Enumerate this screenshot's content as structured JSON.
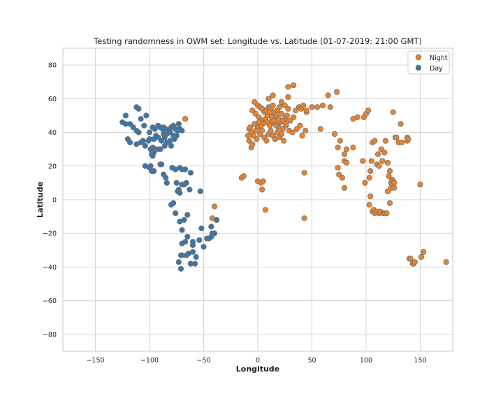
{
  "colors": {
    "night": "#e8832f",
    "day": "#3a76a8",
    "marker_edge": "#707070",
    "grid": "#d6d6d6",
    "axes_edge": "#c8c8c8",
    "text": "#222222"
  },
  "chart_data": {
    "type": "scatter",
    "title": "Testing randomness in OWM set: Longitude vs. Latitude (01-07-2019: 21:00 GMT)",
    "xlabel": "Longitude",
    "ylabel": "Latitude",
    "xlim": [
      -180,
      180
    ],
    "ylim": [
      -90,
      90
    ],
    "xticks": [
      -150,
      -100,
      -50,
      0,
      50,
      100,
      150
    ],
    "yticks": [
      -80,
      -60,
      -40,
      -20,
      0,
      20,
      40,
      60,
      80
    ],
    "grid": true,
    "legend_position": "top-right",
    "series": [
      {
        "name": "Night",
        "color_key": "night",
        "points": [
          [
            -3,
            58
          ],
          [
            0,
            56
          ],
          [
            2,
            55
          ],
          [
            4,
            54
          ],
          [
            6,
            52
          ],
          [
            8,
            53
          ],
          [
            10,
            55
          ],
          [
            12,
            54
          ],
          [
            14,
            56
          ],
          [
            15,
            52
          ],
          [
            17,
            50
          ],
          [
            18,
            53
          ],
          [
            20,
            55
          ],
          [
            22,
            51
          ],
          [
            25,
            48
          ],
          [
            27,
            50
          ],
          [
            28,
            54
          ],
          [
            30,
            47
          ],
          [
            33,
            49
          ],
          [
            35,
            53
          ],
          [
            38,
            55
          ],
          [
            40,
            54
          ],
          [
            42,
            56
          ],
          [
            45,
            52
          ],
          [
            -5,
            53
          ],
          [
            -2,
            51
          ],
          [
            1,
            49
          ],
          [
            3,
            47
          ],
          [
            5,
            45
          ],
          [
            7,
            48
          ],
          [
            9,
            46
          ],
          [
            11,
            44
          ],
          [
            13,
            47
          ],
          [
            16,
            45
          ],
          [
            19,
            43
          ],
          [
            21,
            46
          ],
          [
            23,
            42
          ],
          [
            26,
            44
          ],
          [
            29,
            41
          ],
          [
            32,
            40
          ],
          [
            36,
            42
          ],
          [
            39,
            44
          ],
          [
            41,
            38
          ],
          [
            44,
            41
          ],
          [
            -8,
            42
          ],
          [
            -6,
            40
          ],
          [
            -4,
            38
          ],
          [
            -1,
            36
          ],
          [
            2,
            39
          ],
          [
            4,
            41
          ],
          [
            6,
            37
          ],
          [
            8,
            35
          ],
          [
            10,
            39
          ],
          [
            12,
            41
          ],
          [
            14,
            38
          ],
          [
            16,
            36
          ],
          [
            18,
            40
          ],
          [
            20,
            37
          ],
          [
            22,
            39
          ],
          [
            24,
            35
          ],
          [
            -7,
            43
          ],
          [
            -3,
            45
          ],
          [
            0,
            43
          ],
          [
            3,
            44
          ],
          [
            -9,
            38
          ],
          [
            -8,
            35
          ],
          [
            -6,
            31
          ],
          [
            -5,
            33
          ],
          [
            -2,
            41
          ],
          [
            1,
            46
          ],
          [
            9,
            50
          ],
          [
            11,
            52
          ],
          [
            13,
            49
          ],
          [
            15,
            47
          ],
          [
            17,
            44
          ],
          [
            19,
            48
          ],
          [
            23,
            47
          ],
          [
            26,
            45
          ],
          [
            28,
            61
          ],
          [
            28,
            67
          ],
          [
            33,
            68
          ],
          [
            22,
            58
          ],
          [
            14,
            62
          ],
          [
            10,
            60
          ],
          [
            25,
            56
          ],
          [
            45,
            53
          ],
          [
            50,
            55
          ],
          [
            55,
            55
          ],
          [
            58,
            42
          ],
          [
            60,
            56
          ],
          [
            65,
            62
          ],
          [
            67,
            55
          ],
          [
            71,
            39
          ],
          [
            73,
            64
          ],
          [
            76,
            35
          ],
          [
            74,
            31
          ],
          [
            74,
            19
          ],
          [
            75,
            15
          ],
          [
            78,
            13
          ],
          [
            80,
            27
          ],
          [
            80,
            23
          ],
          [
            80,
            7
          ],
          [
            82,
            22
          ],
          [
            82,
            30
          ],
          [
            88,
            31
          ],
          [
            88,
            48
          ],
          [
            92,
            49
          ],
          [
            97,
            23
          ],
          [
            98,
            49
          ],
          [
            99,
            10
          ],
          [
            100,
            51
          ],
          [
            102,
            53
          ],
          [
            103,
            -3
          ],
          [
            103,
            13
          ],
          [
            104,
            17
          ],
          [
            104,
            2
          ],
          [
            105,
            23
          ],
          [
            106,
            34
          ],
          [
            106,
            -7
          ],
          [
            107,
            -6
          ],
          [
            108,
            35
          ],
          [
            108,
            -8
          ],
          [
            110,
            21
          ],
          [
            110,
            -7
          ],
          [
            111,
            27
          ],
          [
            112,
            20
          ],
          [
            112,
            -8
          ],
          [
            113,
            -7
          ],
          [
            114,
            30
          ],
          [
            115,
            23
          ],
          [
            116,
            -8
          ],
          [
            117,
            28
          ],
          [
            117,
            -8
          ],
          [
            118,
            35
          ],
          [
            119,
            -8
          ],
          [
            120,
            5
          ],
          [
            120,
            22
          ],
          [
            121,
            14
          ],
          [
            122,
            17
          ],
          [
            122,
            -2
          ],
          [
            123,
            7
          ],
          [
            123,
            10
          ],
          [
            124,
            12
          ],
          [
            125,
            11
          ],
          [
            125,
            52
          ],
          [
            126,
            10
          ],
          [
            126,
            7
          ],
          [
            127,
            37
          ],
          [
            128,
            37
          ],
          [
            130,
            34
          ],
          [
            132,
            45
          ],
          [
            133,
            34
          ],
          [
            138,
            35
          ],
          [
            138,
            37
          ],
          [
            139,
            36
          ],
          [
            140,
            -35
          ],
          [
            141,
            -35
          ],
          [
            143,
            -38
          ],
          [
            144,
            -38
          ],
          [
            145,
            -37
          ],
          [
            150,
            9
          ],
          [
            151,
            -34
          ],
          [
            153,
            -31
          ],
          [
            174,
            -37
          ],
          [
            -15,
            13
          ],
          [
            -13,
            14
          ],
          [
            0,
            11
          ],
          [
            3,
            10
          ],
          [
            5,
            11
          ],
          [
            7,
            -6
          ],
          [
            4,
            6
          ],
          [
            43,
            -11
          ],
          [
            43,
            16
          ],
          [
            -40,
            -4
          ],
          [
            -38,
            -12
          ],
          [
            -42,
            -11
          ],
          [
            -67,
            48
          ]
        ]
      },
      {
        "name": "Day",
        "color_key": "day",
        "points": [
          [
            -122,
            50
          ],
          [
            -125,
            46
          ],
          [
            -122,
            45
          ],
          [
            -118,
            45
          ],
          [
            -115,
            43
          ],
          [
            -112,
            41
          ],
          [
            -110,
            40
          ],
          [
            -108,
            48
          ],
          [
            -105,
            44
          ],
          [
            -100,
            40
          ],
          [
            -97,
            43
          ],
          [
            -95,
            42
          ],
          [
            -92,
            44
          ],
          [
            -90,
            43
          ],
          [
            -88,
            42
          ],
          [
            -87,
            43
          ],
          [
            -85,
            42
          ],
          [
            -83,
            41
          ],
          [
            -81,
            40
          ],
          [
            -80,
            43
          ],
          [
            -78,
            44
          ],
          [
            -76,
            42
          ],
          [
            -74,
            41
          ],
          [
            -72,
            42
          ],
          [
            -70,
            41
          ],
          [
            -73,
            45
          ],
          [
            -120,
            36
          ],
          [
            -118,
            34
          ],
          [
            -112,
            33
          ],
          [
            -106,
            35
          ],
          [
            -104,
            32
          ],
          [
            -97,
            31
          ],
          [
            -95,
            30
          ],
          [
            -90,
            30
          ],
          [
            -86,
            32
          ],
          [
            -84,
            34
          ],
          [
            -81,
            35
          ],
          [
            -80,
            32
          ],
          [
            -78,
            38
          ],
          [
            -77,
            36
          ],
          [
            -75,
            38
          ],
          [
            -112,
            55
          ],
          [
            -110,
            54
          ],
          [
            -103,
            50
          ],
          [
            -108,
            34
          ],
          [
            -104,
            20
          ],
          [
            -100,
            19
          ],
          [
            -99,
            20
          ],
          [
            -98,
            17
          ],
          [
            -96,
            17
          ],
          [
            -90,
            21
          ],
          [
            -89,
            21
          ],
          [
            -87,
            15
          ],
          [
            -85,
            13
          ],
          [
            -84,
            10
          ],
          [
            -79,
            19
          ],
          [
            -76,
            18
          ],
          [
            -72,
            19
          ],
          [
            -70,
            18
          ],
          [
            -67,
            18
          ],
          [
            -62,
            16
          ],
          [
            -75,
            10
          ],
          [
            -74,
            5
          ],
          [
            -73,
            6
          ],
          [
            -72,
            4
          ],
          [
            -70,
            9
          ],
          [
            -68,
            9
          ],
          [
            -66,
            10
          ],
          [
            -63,
            6
          ],
          [
            -53,
            5
          ],
          [
            -80,
            -3
          ],
          [
            -78,
            -2
          ],
          [
            -76,
            -8
          ],
          [
            -72,
            -13
          ],
          [
            -70,
            -18
          ],
          [
            -68,
            -12
          ],
          [
            -65,
            -9
          ],
          [
            -70,
            -26
          ],
          [
            -67,
            -25
          ],
          [
            -65,
            -22
          ],
          [
            -60,
            -25
          ],
          [
            -57,
            -34
          ],
          [
            -54,
            -24
          ],
          [
            -52,
            -17
          ],
          [
            -50,
            -28
          ],
          [
            -47,
            -23
          ],
          [
            -45,
            -23
          ],
          [
            -43,
            -22
          ],
          [
            -42,
            -20
          ],
          [
            -40,
            -20
          ],
          [
            -43,
            -16
          ],
          [
            -38,
            -12
          ],
          [
            -71,
            -33
          ],
          [
            -70,
            -33
          ],
          [
            -66,
            -33
          ],
          [
            -64,
            -32
          ],
          [
            -60,
            -31
          ],
          [
            -62,
            -38
          ],
          [
            -58,
            -38
          ],
          [
            -73,
            -37
          ],
          [
            -71,
            -41
          ],
          [
            -60,
            -27
          ],
          [
            -99,
            30
          ],
          [
            -98,
            27
          ],
          [
            -97,
            26
          ],
          [
            -96,
            28
          ],
          [
            -95,
            30
          ],
          [
            -93,
            30
          ],
          [
            -91,
            30
          ],
          [
            -100,
            36
          ],
          [
            -101,
            35
          ],
          [
            -96,
            36
          ],
          [
            -94,
            38
          ],
          [
            -92,
            37
          ],
          [
            -89,
            35
          ],
          [
            -87,
            39
          ],
          [
            -86,
            37
          ],
          [
            -84,
            39
          ]
        ]
      }
    ]
  }
}
